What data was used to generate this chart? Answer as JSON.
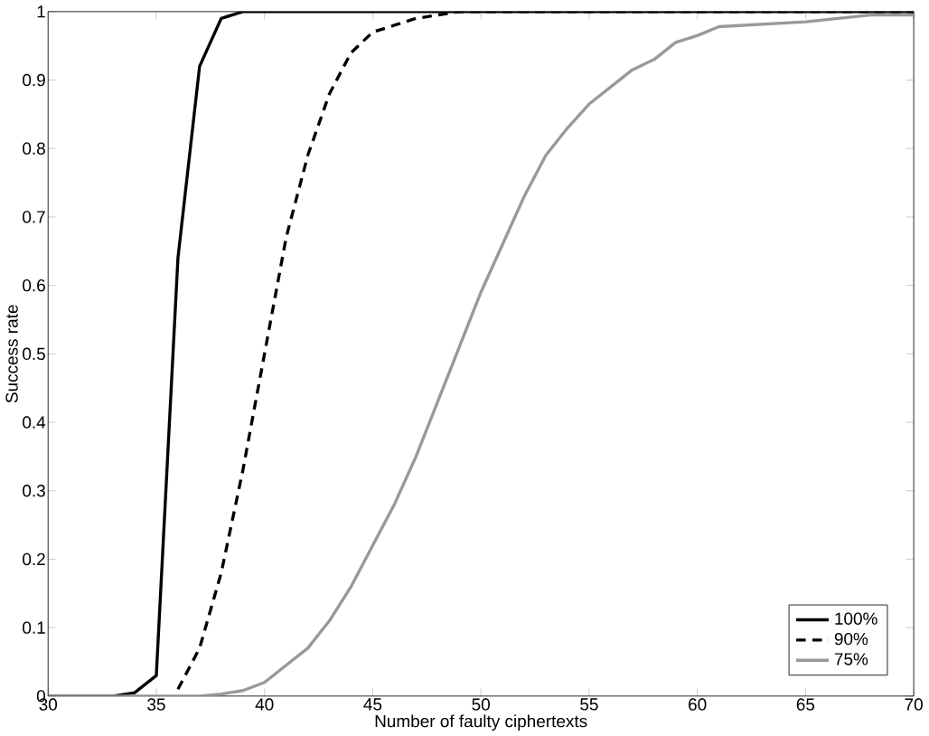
{
  "chart_data": {
    "type": "line",
    "xlabel": "Number of faulty ciphertexts",
    "ylabel": "Success rate",
    "xlim": [
      30,
      70
    ],
    "ylim": [
      0,
      1
    ],
    "xticks": [
      30,
      35,
      40,
      45,
      50,
      55,
      60,
      65,
      70
    ],
    "yticks": [
      0,
      0.1,
      0.2,
      0.3,
      0.4,
      0.5,
      0.6,
      0.7,
      0.8,
      0.9,
      1
    ],
    "grid": false,
    "legend": "bottom right",
    "marker": "none",
    "series": [
      {
        "name": "100%",
        "color": "#000000",
        "line_style": "solid",
        "x": [
          30,
          33,
          34,
          35,
          36,
          37,
          38,
          39,
          70
        ],
        "values": [
          0,
          0,
          0.005,
          0.03,
          0.64,
          0.92,
          0.99,
          1,
          1
        ]
      },
      {
        "name": "90%",
        "color": "#000000",
        "line_style": "dashed",
        "x": [
          36,
          37,
          38,
          39,
          40,
          41,
          42,
          43,
          44,
          45,
          46,
          47,
          48,
          49,
          70
        ],
        "values": [
          0.01,
          0.07,
          0.18,
          0.33,
          0.5,
          0.67,
          0.79,
          0.88,
          0.94,
          0.97,
          0.98,
          0.99,
          0.995,
          1,
          1
        ]
      },
      {
        "name": "75%",
        "color": "#999999",
        "line_style": "solid",
        "x": [
          30,
          37,
          38,
          39,
          40,
          41,
          42,
          43,
          44,
          45,
          46,
          47,
          48,
          49,
          50,
          51,
          52,
          53,
          54,
          55,
          56,
          57,
          58,
          59,
          60,
          61,
          65,
          68,
          70
        ],
        "values": [
          0,
          0,
          0.003,
          0.008,
          0.02,
          0.045,
          0.07,
          0.11,
          0.16,
          0.22,
          0.28,
          0.35,
          0.43,
          0.51,
          0.59,
          0.66,
          0.73,
          0.79,
          0.83,
          0.865,
          0.89,
          0.915,
          0.93,
          0.955,
          0.965,
          0.978,
          0.985,
          0.995,
          0.995
        ]
      }
    ]
  }
}
